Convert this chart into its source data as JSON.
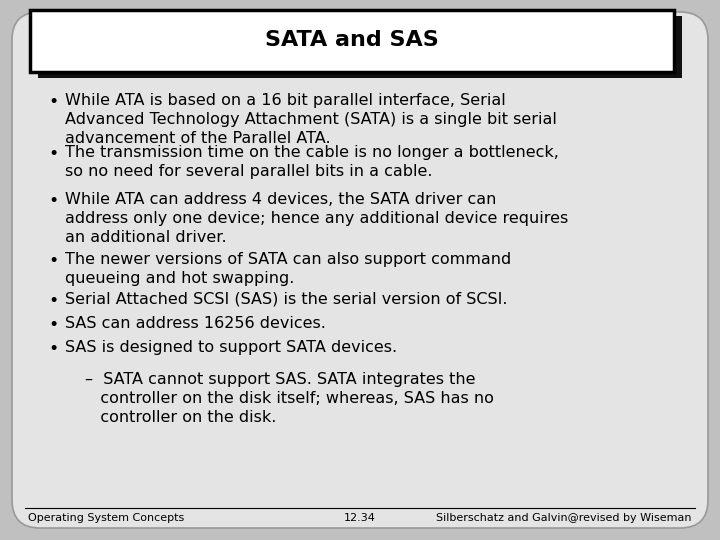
{
  "title": "SATA and SAS",
  "bg_color": "#c0c0c0",
  "slide_bg": "#e0e0e0",
  "box_bg": "#ffffff",
  "title_fontsize": 16,
  "body_fontsize": 11.5,
  "footer_fontsize": 8,
  "bullets": [
    "While ATA is based on a 16 bit parallel interface, Serial\nAdvanced Technology Attachment (SATA) is a single bit serial\nadvancement of the Parallel ATA.",
    "The transmission time on the cable is no longer a bottleneck,\nso no need for several parallel bits in a cable.",
    "While ATA can address 4 devices, the SATA driver can\naddress only one device; hence any additional device requires\nan additional driver.",
    "The newer versions of SATA can also support command\nqueueing and hot swapping.",
    "Serial Attached SCSI (SAS) is the serial version of SCSI.",
    "SAS can address 16256 devices.",
    "SAS is designed to support SATA devices."
  ],
  "sub_bullet": "–  SATA cannot support SAS. SATA integrates the\n   controller on the disk itself; whereas, SAS has no\n   controller on the disk.",
  "footer_left": "Operating System Concepts",
  "footer_center": "12.34",
  "footer_right": "Silberschatz and Galvin@revised by Wiseman"
}
